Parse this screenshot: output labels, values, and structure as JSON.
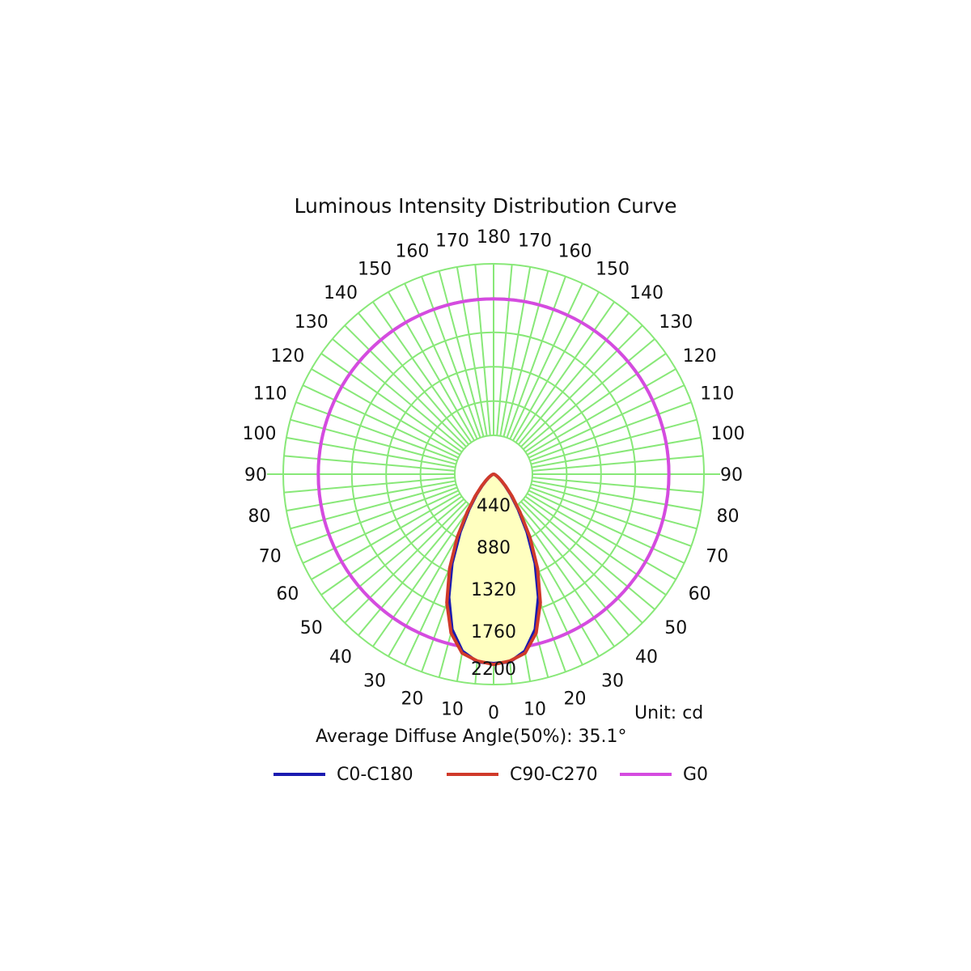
{
  "chart_data": {
    "type": "polar",
    "title": "Luminous Intensity Distribution Curve",
    "unit_label": "Unit: cd",
    "average_label": "Average Diffuse Angle(50%): 35.1°",
    "radial_ticks": [
      "440",
      "880",
      "1320",
      "1760",
      "2200"
    ],
    "radial_values": [
      440,
      880,
      1320,
      1760,
      2200
    ],
    "r_max": 2200,
    "angle_tick_values": [
      0,
      10,
      20,
      30,
      40,
      50,
      60,
      70,
      80,
      90,
      100,
      110,
      120,
      130,
      140,
      150,
      160,
      170,
      180
    ],
    "angle_labels_left": [
      "10",
      "20",
      "30",
      "40",
      "50",
      "60",
      "70",
      "80",
      "90",
      "100",
      "110",
      "120",
      "130",
      "140",
      "150",
      "160",
      "170"
    ],
    "angle_labels_right": [
      "10",
      "20",
      "30",
      "40",
      "50",
      "60",
      "70",
      "80",
      "90",
      "100",
      "110",
      "120",
      "130",
      "140",
      "150",
      "160",
      "170"
    ],
    "angle_label_bottom": "0",
    "angle_label_top": "180",
    "grid": true,
    "legend_position": "bottom",
    "colors": {
      "grid": "#88e878",
      "c0": "#1a1ab0",
      "c90": "#d03a2a",
      "g0": "#d54be0",
      "fill": "#ffffc0"
    },
    "series": [
      {
        "name": "C0-C180",
        "angles": [
          0,
          5,
          10,
          15,
          20,
          25,
          30,
          35,
          40,
          45,
          50,
          55,
          60,
          65,
          70,
          75,
          80,
          85,
          90
        ],
        "values": [
          1980,
          1970,
          1880,
          1680,
          1370,
          1030,
          700,
          450,
          280,
          170,
          105,
          65,
          40,
          24,
          14,
          8,
          4,
          2,
          0
        ]
      },
      {
        "name": "C90-C270",
        "angles": [
          0,
          5,
          10,
          15,
          20,
          25,
          30,
          35,
          40,
          45,
          50,
          55,
          60,
          65,
          70,
          75,
          80,
          85,
          90
        ],
        "values": [
          1990,
          1960,
          1900,
          1720,
          1430,
          1090,
          760,
          480,
          300,
          180,
          110,
          68,
          42,
          25,
          15,
          8,
          4,
          2,
          0
        ]
      },
      {
        "name": "G0",
        "values": [
          1750
        ]
      }
    ]
  }
}
